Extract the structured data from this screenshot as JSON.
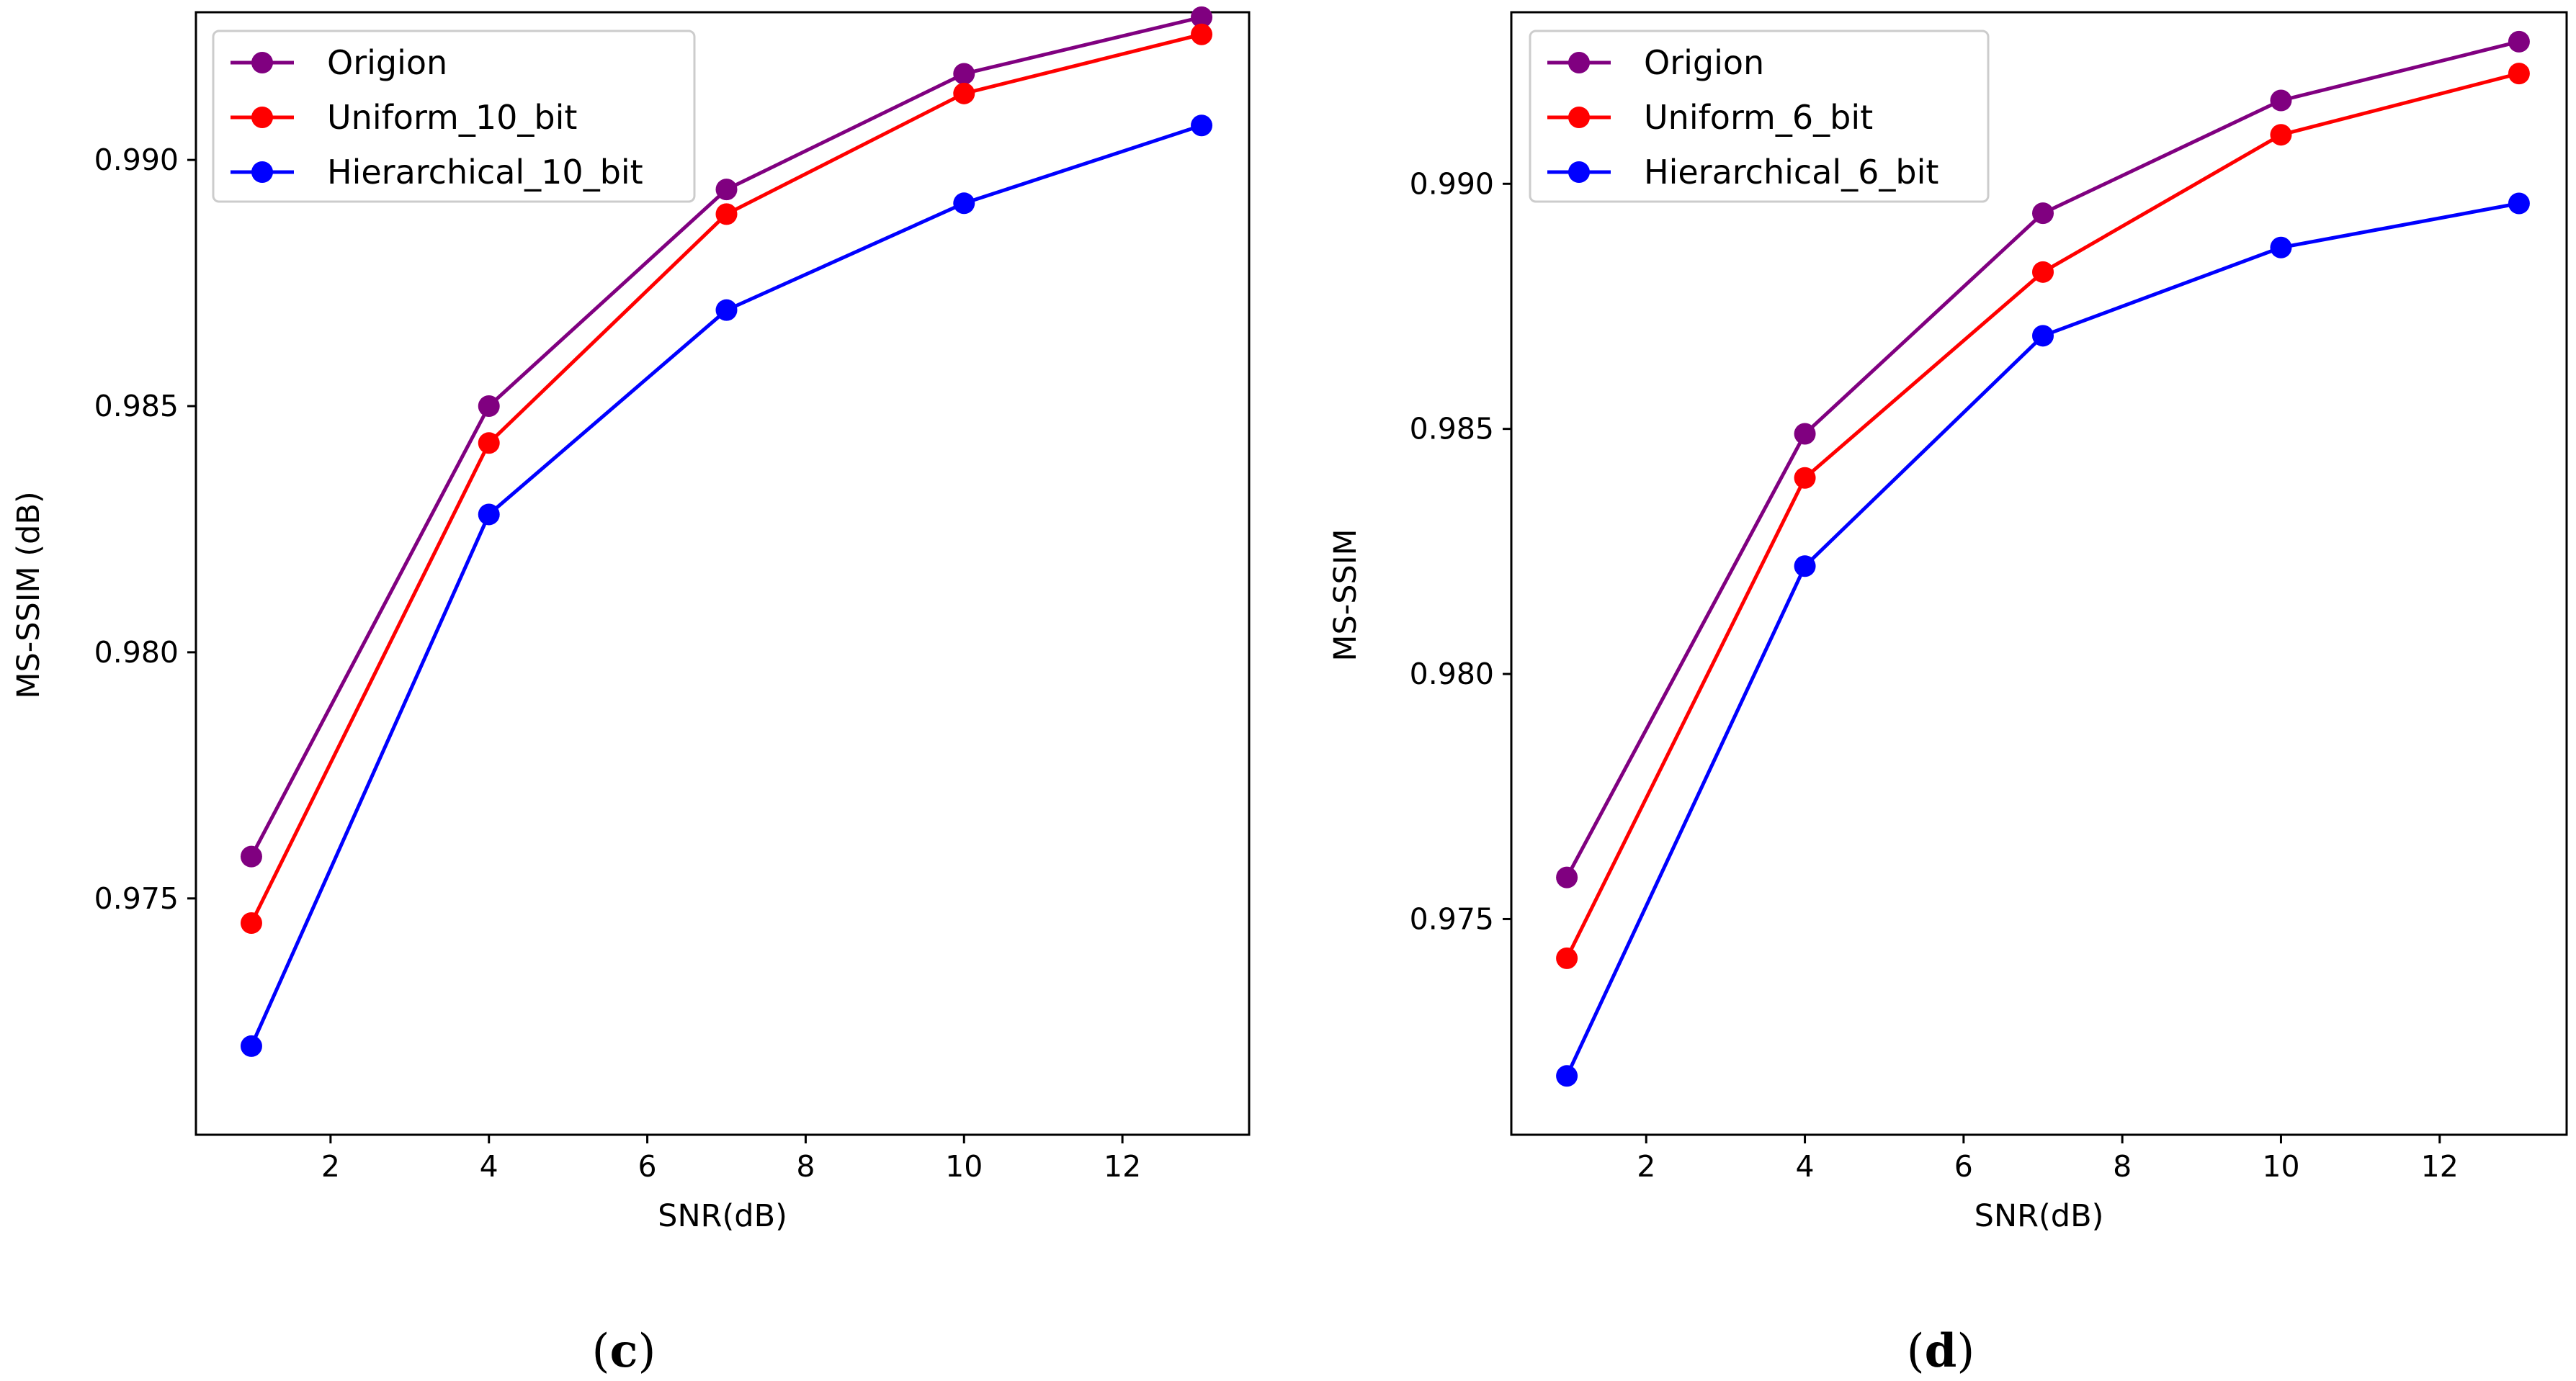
{
  "colors": {
    "origion": "#800080",
    "uniform": "#ff0000",
    "hierarchical": "#0000ff",
    "axes": "#000000",
    "legend_border": "#cccccc",
    "background": "#ffffff"
  },
  "chart_data": [
    {
      "type": "line",
      "panel": "c",
      "caption_open": "(",
      "caption_letter": "c",
      "caption_close": ")",
      "xlabel": "SNR(dB)",
      "ylabel": "MS-SSIM (dB)",
      "xlim": [
        0.3,
        13.6
      ],
      "ylim": [
        0.9702,
        0.993
      ],
      "xticks": [
        2,
        4,
        6,
        8,
        10,
        12
      ],
      "xtick_labels": [
        "2",
        "4",
        "6",
        "8",
        "10",
        "12"
      ],
      "yticks": [
        0.975,
        0.98,
        0.985,
        0.99
      ],
      "ytick_labels": [
        "0.975",
        "0.980",
        "0.985",
        "0.990"
      ],
      "legend_position": "upper-left",
      "x": [
        1,
        4,
        7,
        10,
        13
      ],
      "series": [
        {
          "name": "Origion",
          "color_key": "origion",
          "values": [
            0.97585,
            0.985,
            0.9894,
            0.99175,
            0.9929
          ]
        },
        {
          "name": "Uniform_10_bit",
          "color_key": "uniform",
          "values": [
            0.9745,
            0.98425,
            0.9889,
            0.99135,
            0.99255
          ]
        },
        {
          "name": "Hierarchical_10_bit",
          "color_key": "hierarchical",
          "values": [
            0.972,
            0.9828,
            0.98695,
            0.98912,
            0.9907
          ]
        }
      ]
    },
    {
      "type": "line",
      "panel": "d",
      "caption_open": "(",
      "caption_letter": "d",
      "caption_close": ")",
      "xlabel": "SNR(dB)",
      "ylabel": "MS-SSIM",
      "xlim": [
        0.3,
        13.6
      ],
      "ylim": [
        0.9706,
        0.9935
      ],
      "xticks": [
        2,
        4,
        6,
        8,
        10,
        12
      ],
      "xtick_labels": [
        "2",
        "4",
        "6",
        "8",
        "10",
        "12"
      ],
      "yticks": [
        0.975,
        0.98,
        0.985,
        0.99
      ],
      "ytick_labels": [
        "0.975",
        "0.980",
        "0.985",
        "0.990"
      ],
      "legend_position": "upper-left",
      "x": [
        1,
        4,
        7,
        10,
        13
      ],
      "series": [
        {
          "name": "Origion",
          "color_key": "origion",
          "values": [
            0.97585,
            0.9849,
            0.9894,
            0.9917,
            0.9929
          ]
        },
        {
          "name": "Uniform_6_bit",
          "color_key": "uniform",
          "values": [
            0.9742,
            0.984,
            0.9882,
            0.991,
            0.99225
          ]
        },
        {
          "name": "Hierarchical_6_bit",
          "color_key": "hierarchical",
          "values": [
            0.9718,
            0.9822,
            0.9869,
            0.9887,
            0.9896
          ]
        }
      ]
    }
  ]
}
